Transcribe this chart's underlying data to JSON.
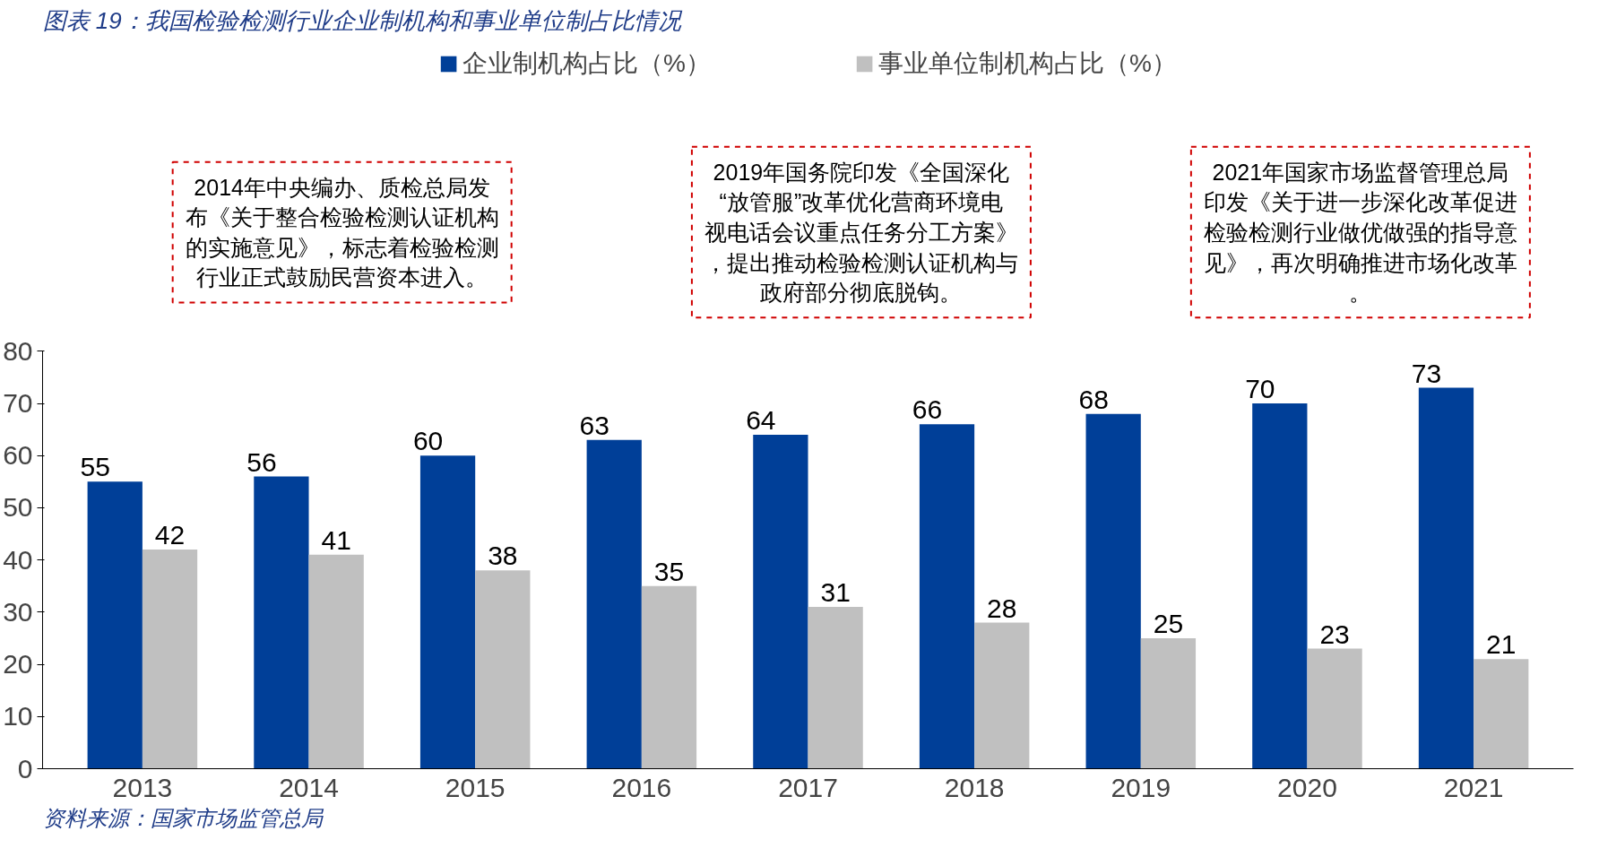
{
  "chart_data": {
    "type": "bar",
    "title": "图表 19：我国检验检测行业企业制机构和事业单位制占比情况",
    "categories": [
      "2013",
      "2014",
      "2015",
      "2016",
      "2017",
      "2018",
      "2019",
      "2020",
      "2021"
    ],
    "series": [
      {
        "name": "企业制机构占比（%）",
        "color": "#003f98",
        "values": [
          55,
          56,
          60,
          63,
          64,
          66,
          68,
          70,
          73
        ]
      },
      {
        "name": "事业单位制机构占比（%）",
        "color": "#c0c0c0",
        "values": [
          42,
          41,
          38,
          35,
          31,
          28,
          25,
          23,
          21
        ]
      }
    ],
    "ylim": [
      0,
      80
    ],
    "yticks": [
      0,
      10,
      20,
      30,
      40,
      50,
      60,
      70,
      80
    ],
    "data_labels": true,
    "legend": "top",
    "grid": false,
    "annotations": [
      "2014年中央编办、质检总局发布《关于整合检验检测认证机构的实施意见》，标志着检验检测行业正式鼓励民营资本进入。",
      "2019年国务院印发《全国深化“放管服”改革优化营商环境电视电话会议重点任务分工方案》，提出推动检验检测认证机构与政府部分彻底脱钩。",
      "2021年国家市场监督管理总局印发《关于进一步深化改革促进检验检测行业做优做强的指导意见》，再次明确推进市场化改革。",
      "资料来源：国家市场监管总局"
    ]
  }
}
